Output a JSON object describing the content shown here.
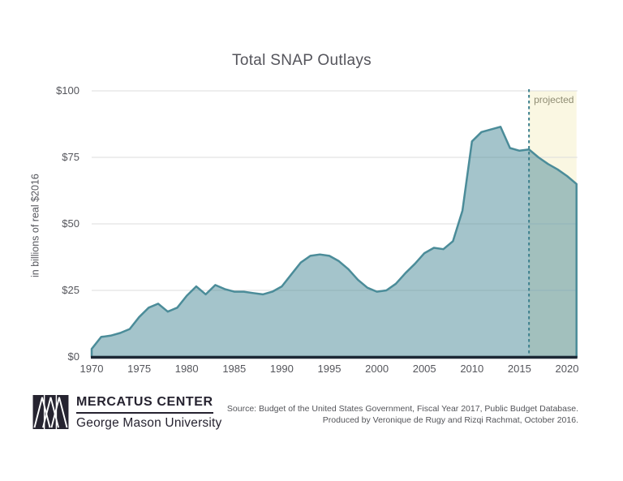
{
  "page": {
    "background": "#ffffff"
  },
  "chart_data": {
    "type": "area",
    "title": "Total SNAP Outlays",
    "xlabel": "",
    "ylabel": "in billions of real $2016",
    "ylim": [
      0,
      100
    ],
    "x_range": [
      1970,
      2021
    ],
    "grid": true,
    "y_tick_values": [
      100,
      75,
      50,
      25,
      0
    ],
    "y_tick_labels": [
      "$100",
      "$75",
      "$50",
      "$25",
      "$0"
    ],
    "x_tick_years": [
      1970,
      1975,
      1980,
      1985,
      1990,
      1995,
      2000,
      2005,
      2010,
      2015,
      2020
    ],
    "x_tick_labels": [
      "1970",
      "1975",
      "1980",
      "1985",
      "1990",
      "1995",
      "2000",
      "2005",
      "2010",
      "2015",
      "2020"
    ],
    "projection": {
      "start_year": 2016,
      "label": "projected",
      "region_color": "#faf7e2",
      "divider_color": "#3d808e",
      "label_color": "#8f8c73"
    },
    "series": [
      {
        "name": "Total SNAP Outlays",
        "x": [
          1970,
          1971,
          1972,
          1973,
          1974,
          1975,
          1976,
          1977,
          1978,
          1979,
          1980,
          1981,
          1982,
          1983,
          1984,
          1985,
          1986,
          1987,
          1988,
          1989,
          1990,
          1991,
          1992,
          1993,
          1994,
          1995,
          1996,
          1997,
          1998,
          1999,
          2000,
          2001,
          2002,
          2003,
          2004,
          2005,
          2006,
          2007,
          2008,
          2009,
          2010,
          2011,
          2012,
          2013,
          2014,
          2015,
          2016,
          2017,
          2018,
          2019,
          2020,
          2021
        ],
        "values": [
          3,
          7.5,
          8,
          9,
          10.5,
          15,
          18.5,
          20,
          17,
          18.5,
          23,
          26.5,
          23.5,
          27,
          25.5,
          24.5,
          24.5,
          24,
          23.5,
          24.5,
          26.5,
          31,
          35.5,
          38,
          38.5,
          38,
          36,
          33,
          29,
          26,
          24.5,
          25,
          27.5,
          31.5,
          35,
          39,
          41,
          40.5,
          43.5,
          55,
          81,
          84.5,
          85.5,
          86.5,
          78.5,
          77.5,
          78,
          75,
          72.5,
          70.5,
          68,
          65
        ]
      }
    ],
    "colors": {
      "line": "#4b8c99",
      "fill": "rgba(74,138,151,0.5)",
      "grid": "#dcdcdc",
      "baseline": "#1c2734",
      "axis_text": "#55565c",
      "title_text": "#54545b"
    }
  },
  "footer": {
    "logo": {
      "line1": "MERCATUS CENTER",
      "line2": "George Mason University"
    },
    "source_line1": "Source: Budget of the United States Government, Fiscal Year 2017, Public Budget Database.",
    "source_line2": "Produced by Veronique de Rugy and Rizqi Rachmat, October 2016."
  }
}
